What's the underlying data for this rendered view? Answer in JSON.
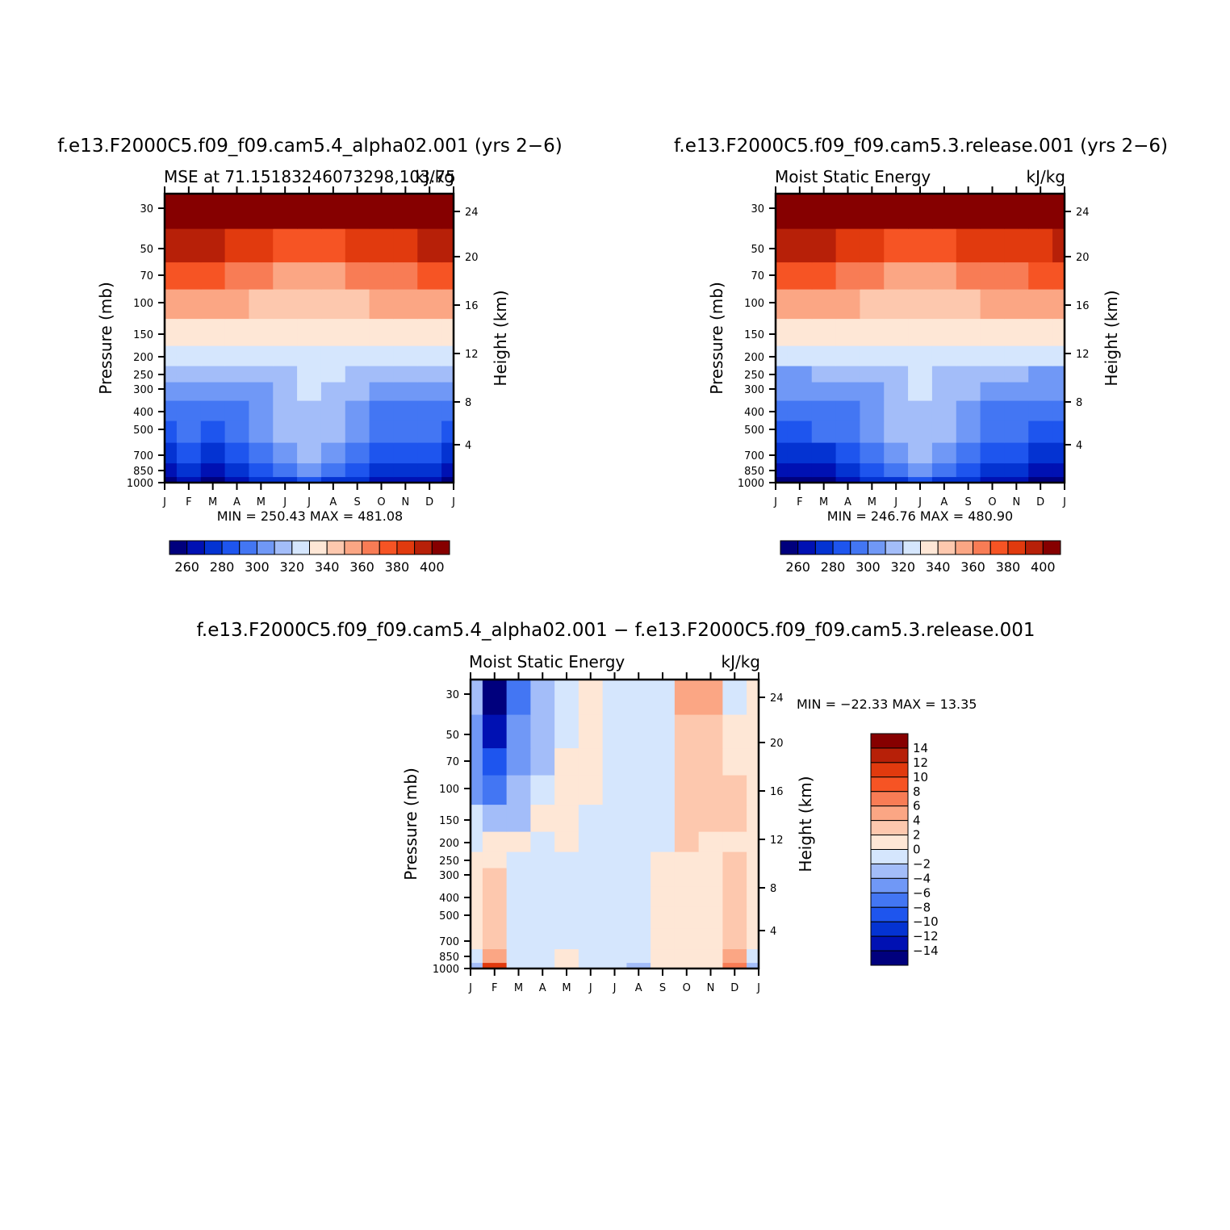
{
  "months": [
    "J",
    "F",
    "M",
    "A",
    "M",
    "J",
    "J",
    "A",
    "S",
    "O",
    "N",
    "D",
    "J"
  ],
  "pressure_ticks": [
    "30",
    "50",
    "70",
    "100",
    "150",
    "200",
    "250",
    "300",
    "400",
    "500",
    "700",
    "850",
    "1000"
  ],
  "height_ticks": [
    "24",
    "20",
    "16",
    "12",
    "8",
    "4"
  ],
  "palette": [
    "#00007d",
    "#0011b3",
    "#0433d2",
    "#1e55ee",
    "#4376f3",
    "#7098f6",
    "#a3bdf9",
    "#d5e6fd",
    "#fee7d6",
    "#fdc8ae",
    "#fba684",
    "#f87c55",
    "#f65424",
    "#e13a0e",
    "#b72008",
    "#860000"
  ],
  "chart_data": [
    {
      "id": "panel-a",
      "type": "heatmap",
      "title": "f.e13.F2000C5.f09_f09.cam5.4_alpha02.001 (yrs 2−6)",
      "left_label": "MSE at 71.15183246073298,103.75",
      "right_label": "kJ/kg",
      "ylabel": "Pressure (mb)",
      "y2label": "Height (km)",
      "stats": "MIN = 250.43 MAX = 481.08",
      "colorbar_labels": [
        "260",
        "280",
        "300",
        "320",
        "340",
        "360",
        "380",
        "400"
      ],
      "x_categories": [
        "J",
        "F",
        "M",
        "A",
        "M",
        "J",
        "J",
        "A",
        "S",
        "O",
        "N",
        "D",
        "J"
      ],
      "pressure_levels_mb": [
        1000,
        850,
        700,
        500,
        400,
        300,
        250,
        200,
        150,
        100,
        70,
        50,
        30
      ],
      "color_levels": [
        260,
        270,
        280,
        290,
        300,
        310,
        320,
        330,
        340,
        350,
        360,
        370,
        380,
        390,
        400
      ],
      "values": [
        [
          256,
          260,
          258,
          264,
          270,
          276,
          282,
          276,
          272,
          268,
          264,
          262,
          256
        ],
        [
          268,
          273,
          266,
          275,
          287,
          296,
          300,
          296,
          286,
          278,
          274,
          271,
          268
        ],
        [
          279,
          286,
          279,
          288,
          298,
          306,
          310,
          306,
          298,
          288,
          284,
          282,
          279
        ],
        [
          289,
          293,
          289,
          295,
          302,
          310,
          315,
          312,
          304,
          295,
          292,
          290,
          289
        ],
        [
          292,
          296,
          293,
          298,
          305,
          314,
          318,
          315,
          307,
          298,
          295,
          293,
          292
        ],
        [
          301,
          302,
          300,
          304,
          309,
          316,
          320,
          318,
          311,
          303,
          301,
          301,
          301
        ],
        [
          310,
          311,
          310,
          312,
          315,
          318,
          321,
          320,
          316,
          312,
          311,
          311,
          310
        ],
        [
          323,
          323,
          322,
          321,
          322,
          324,
          325,
          324,
          323,
          322,
          322,
          322,
          323
        ],
        [
          338,
          338,
          335,
          333,
          332,
          331,
          330,
          331,
          333,
          335,
          336,
          337,
          338
        ],
        [
          357,
          357,
          354,
          350,
          346,
          343,
          342,
          343,
          347,
          351,
          354,
          356,
          357
        ],
        [
          374,
          374,
          371,
          366,
          362,
          359,
          357,
          358,
          362,
          366,
          369,
          372,
          374
        ],
        [
          395,
          398,
          392,
          386,
          381,
          377,
          374,
          376,
          381,
          384,
          386,
          390,
          395
        ],
        [
          430,
          432,
          426,
          420,
          414,
          410,
          408,
          410,
          414,
          418,
          420,
          425,
          430
        ]
      ]
    },
    {
      "id": "panel-b",
      "type": "heatmap",
      "title": "f.e13.F2000C5.f09_f09.cam5.3.release.001 (yrs 2−6)",
      "left_label": "Moist Static Energy",
      "right_label": "kJ/kg",
      "ylabel": "Pressure (mb)",
      "y2label": "Height (km)",
      "stats": "MIN = 246.76 MAX = 480.90",
      "colorbar_labels": [
        "260",
        "280",
        "300",
        "320",
        "340",
        "360",
        "380",
        "400"
      ],
      "x_categories": [
        "J",
        "F",
        "M",
        "A",
        "M",
        "J",
        "J",
        "A",
        "S",
        "O",
        "N",
        "D",
        "J"
      ],
      "pressure_levels_mb": [
        1000,
        850,
        700,
        500,
        400,
        300,
        250,
        200,
        150,
        100,
        70,
        50,
        30
      ],
      "color_levels": [
        260,
        270,
        280,
        290,
        300,
        310,
        320,
        330,
        340,
        350,
        360,
        370,
        380,
        390,
        400
      ],
      "values": [
        [
          255,
          256,
          258,
          263,
          270,
          277,
          283,
          277,
          271,
          266,
          262,
          258,
          255
        ],
        [
          266,
          268,
          269,
          276,
          287,
          297,
          301,
          296,
          286,
          276,
          271,
          267,
          266
        ],
        [
          277,
          278,
          279,
          288,
          299,
          307,
          311,
          306,
          297,
          287,
          282,
          279,
          277
        ],
        [
          287,
          289,
          290,
          295,
          303,
          311,
          316,
          311,
          303,
          294,
          291,
          288,
          287
        ],
        [
          291,
          292,
          293,
          298,
          306,
          314,
          318,
          314,
          306,
          297,
          294,
          292,
          291
        ],
        [
          300,
          301,
          301,
          304,
          309,
          316,
          320,
          317,
          310,
          303,
          301,
          300,
          300
        ],
        [
          309,
          309,
          310,
          312,
          315,
          318,
          321,
          319,
          315,
          312,
          310,
          309,
          309
        ],
        [
          322,
          322,
          322,
          321,
          322,
          324,
          325,
          324,
          323,
          322,
          321,
          322,
          322
        ],
        [
          337,
          337,
          335,
          333,
          332,
          331,
          330,
          331,
          333,
          334,
          335,
          336,
          337
        ],
        [
          356,
          355,
          353,
          350,
          346,
          343,
          342,
          343,
          346,
          350,
          353,
          355,
          356
        ],
        [
          373,
          372,
          370,
          366,
          362,
          359,
          357,
          358,
          361,
          365,
          368,
          371,
          373
        ],
        [
          394,
          392,
          390,
          386,
          381,
          377,
          374,
          376,
          380,
          383,
          385,
          388,
          394
        ],
        [
          429,
          427,
          425,
          420,
          414,
          410,
          408,
          410,
          413,
          417,
          420,
          424,
          429
        ]
      ]
    },
    {
      "id": "panel-c",
      "type": "heatmap",
      "title": "f.e13.F2000C5.f09_f09.cam5.4_alpha02.001 − f.e13.F2000C5.f09_f09.cam5.3.release.001",
      "left_label": "Moist Static Energy",
      "right_label": "kJ/kg",
      "ylabel": "Pressure (mb)",
      "y2label": "Height (km)",
      "stats": "MIN = −22.33 MAX =  13.35",
      "colorbar_labels": [
        "14",
        "12",
        "10",
        "8",
        "6",
        "4",
        "2",
        "0",
        "−2",
        "−4",
        "−6",
        "−8",
        "−10",
        "−12",
        "−14"
      ],
      "x_categories": [
        "J",
        "F",
        "M",
        "A",
        "M",
        "J",
        "J",
        "A",
        "S",
        "O",
        "N",
        "D",
        "J"
      ],
      "pressure_levels_mb": [
        1000,
        850,
        700,
        500,
        400,
        300,
        250,
        200,
        150,
        100,
        70,
        50,
        30
      ],
      "color_levels": [
        -14,
        -12,
        -10,
        -8,
        -6,
        -4,
        -2,
        0,
        2,
        4,
        6,
        8,
        10,
        12,
        14
      ],
      "values": [
        [
          -3,
          10,
          -0.5,
          -0.5,
          0.5,
          -1.5,
          -1.5,
          -2.5,
          0.5,
          0.5,
          0.5,
          7,
          -3
        ],
        [
          -1,
          4.5,
          -0.5,
          -0.5,
          0.5,
          -1.5,
          -0.5,
          -1,
          0.5,
          1,
          1.5,
          4,
          -1
        ],
        [
          0.5,
          3.5,
          -0.5,
          -0.5,
          -1,
          -1.5,
          -1,
          -0.5,
          0.5,
          1.5,
          1.5,
          3.5,
          0.5
        ],
        [
          1,
          3,
          -1,
          -1,
          -0.5,
          -1,
          -1,
          -0.5,
          0.5,
          1.5,
          1.5,
          3,
          1
        ],
        [
          1.5,
          2.5,
          -1,
          -1,
          -0.5,
          -0.5,
          -1,
          -0.5,
          0.5,
          1.5,
          1.5,
          2.5,
          1.5
        ],
        [
          1,
          2,
          -1,
          -1,
          -0.5,
          -0.5,
          -0.5,
          -0.5,
          0.5,
          1,
          1,
          2.5,
          1
        ],
        [
          0.5,
          0.5,
          -0.5,
          -1,
          -0.5,
          -0.5,
          -0.5,
          -0.5,
          0.5,
          1,
          1,
          2,
          0.5
        ],
        [
          -1,
          0.5,
          0.5,
          -1,
          0.5,
          -0.5,
          -0.5,
          -0.5,
          -0.5,
          2,
          1,
          1.5,
          0.5
        ],
        [
          -2,
          -2.5,
          -3,
          0.5,
          0.5,
          -0.5,
          -0.5,
          -0.5,
          -0.5,
          2.5,
          2.5,
          2.5,
          0.5
        ],
        [
          -5,
          -8,
          -4,
          -1.5,
          0.5,
          0.5,
          -0.5,
          -0.5,
          -0.5,
          2.5,
          2.5,
          2.5,
          1.5
        ],
        [
          -6,
          -10,
          -6,
          -3,
          0.5,
          0.5,
          -0.5,
          -0.5,
          -0.5,
          3,
          2.5,
          1.5,
          1
        ],
        [
          -6,
          -13,
          -6,
          -3,
          -0.5,
          0.5,
          -0.5,
          -0.5,
          -0.5,
          3.5,
          3.5,
          0.5,
          0.5
        ],
        [
          -3,
          -16,
          -8,
          -3,
          -1,
          0.5,
          -0.5,
          -0.5,
          -0.5,
          5,
          5,
          -0.5,
          0.5
        ]
      ]
    }
  ]
}
